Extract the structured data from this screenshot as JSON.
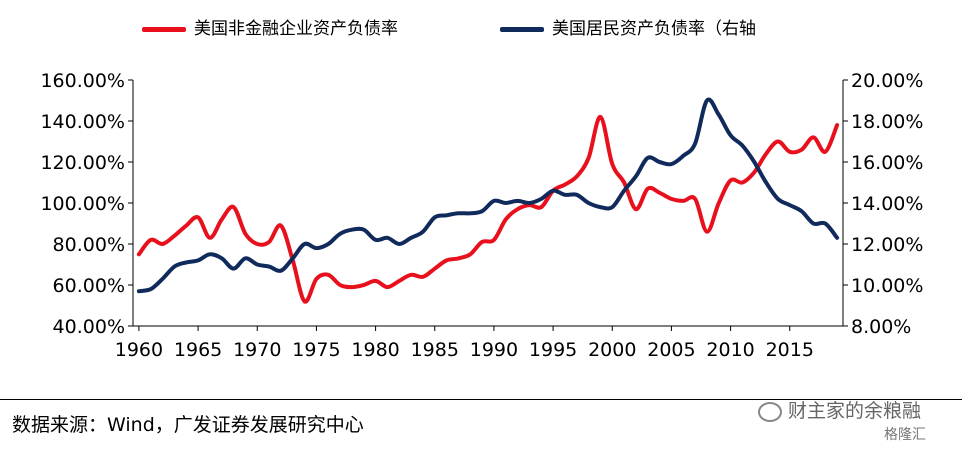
{
  "chart_data": {
    "type": "line",
    "title": "",
    "xlabel": "",
    "ylabel": "",
    "xlim": [
      1959.5,
      2019.5
    ],
    "x_ticks": [
      1960,
      1965,
      1970,
      1975,
      1980,
      1985,
      1990,
      1995,
      2000,
      2005,
      2010,
      2015
    ],
    "y_left": {
      "lim": [
        40,
        160
      ],
      "ticks": [
        "40.00%",
        "60.00%",
        "80.00%",
        "100.00%",
        "120.00%",
        "140.00%",
        "160.00%"
      ]
    },
    "y_right": {
      "lim": [
        8,
        20
      ],
      "ticks": [
        "8.00%",
        "10.00%",
        "12.00%",
        "14.00%",
        "16.00%",
        "18.00%",
        "20.00%"
      ]
    },
    "grid": false,
    "legend_position": "top",
    "x": [
      1960,
      1961,
      1962,
      1963,
      1964,
      1965,
      1966,
      1967,
      1968,
      1969,
      1970,
      1971,
      1972,
      1973,
      1974,
      1975,
      1976,
      1977,
      1978,
      1979,
      1980,
      1981,
      1982,
      1983,
      1984,
      1985,
      1986,
      1987,
      1988,
      1989,
      1990,
      1991,
      1992,
      1993,
      1994,
      1995,
      1996,
      1997,
      1998,
      1999,
      2000,
      2001,
      2002,
      2003,
      2004,
      2005,
      2006,
      2007,
      2008,
      2009,
      2010,
      2011,
      2012,
      2013,
      2014,
      2015,
      2016,
      2017,
      2018,
      2019
    ],
    "series": [
      {
        "name": "美国非金融企业资产负债率",
        "axis": "left",
        "color": "#e8101c",
        "values": [
          75,
          82,
          80,
          84,
          89,
          93,
          83,
          92,
          98,
          85,
          80,
          81,
          89,
          72,
          52,
          63,
          65,
          60,
          59,
          60,
          62,
          59,
          62,
          65,
          64,
          68,
          72,
          73,
          75,
          81,
          82,
          92,
          97,
          99,
          98,
          106,
          109,
          113,
          122,
          142,
          119,
          110,
          97,
          107,
          105,
          102,
          101,
          102,
          86,
          100,
          111,
          110,
          115,
          124,
          130,
          125,
          126,
          132,
          125,
          138
        ]
      },
      {
        "name": "美国居民资产负债率（右轴",
        "axis": "right",
        "color": "#102a5c",
        "values": [
          9.7,
          9.8,
          10.3,
          10.9,
          11.1,
          11.2,
          11.5,
          11.3,
          10.8,
          11.3,
          11.0,
          10.9,
          10.7,
          11.3,
          12.0,
          11.8,
          12.0,
          12.5,
          12.7,
          12.7,
          12.2,
          12.3,
          12.0,
          12.3,
          12.6,
          13.3,
          13.4,
          13.5,
          13.5,
          13.6,
          14.1,
          14.0,
          14.1,
          14.0,
          14.2,
          14.6,
          14.4,
          14.4,
          14.0,
          13.8,
          13.8,
          14.6,
          15.3,
          16.2,
          16.0,
          15.9,
          16.3,
          16.9,
          19.0,
          18.3,
          17.3,
          16.8,
          16.0,
          15.0,
          14.2,
          13.9,
          13.6,
          13.0,
          13.0,
          12.3
        ]
      }
    ]
  },
  "legend": {
    "item1": "美国非金融企业资产负债率",
    "item2": "美国居民资产负债率（右轴"
  },
  "source_text": "数据来源：Wind，广发证券发展研究中心",
  "watermark": "财主家的余粮融",
  "watermark2": "格隆汇"
}
